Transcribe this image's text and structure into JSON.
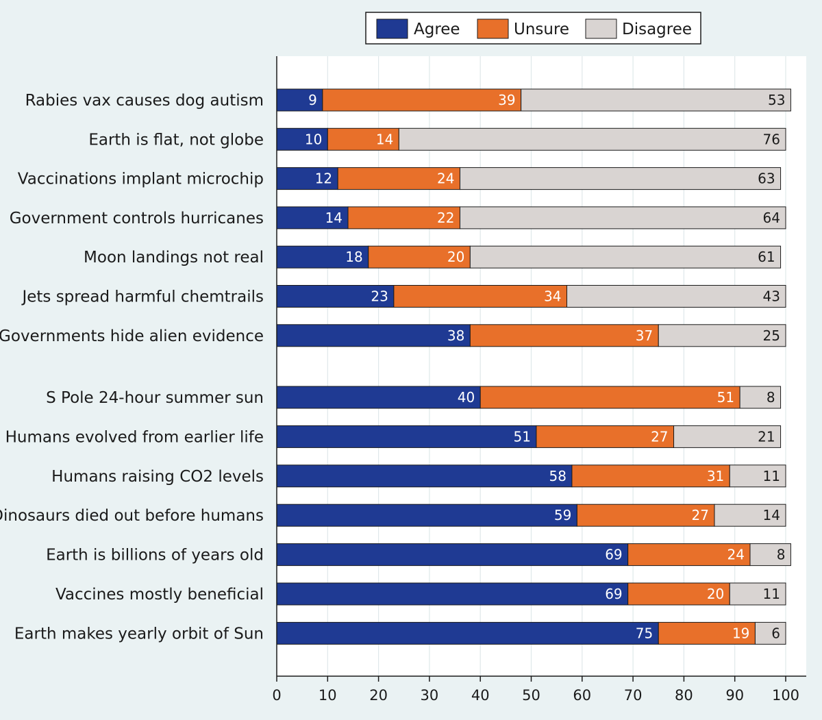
{
  "chart_data": {
    "type": "bar",
    "orientation": "horizontal",
    "stacked": true,
    "xlim": [
      0,
      100
    ],
    "x_ticks": [
      0,
      10,
      20,
      30,
      40,
      50,
      60,
      70,
      80,
      90,
      100
    ],
    "grid": true,
    "legend_position": "top",
    "categories": [
      "Rabies vax causes dog autism",
      "Earth is flat, not globe",
      "Vaccinations implant microchip",
      "Government controls hurricanes",
      "Moon landings not real",
      "Jets spread harmful chemtrails",
      "Governments hide alien evidence",
      "S Pole 24-hour summer sun",
      "Humans evolved from earlier life",
      "Humans raising CO2 levels",
      "Dinosaurs died out before humans",
      "Earth is billions of years old",
      "Vaccines mostly beneficial",
      "Earth makes yearly orbit of Sun"
    ],
    "series": [
      {
        "name": "Agree",
        "color": "#1f3a93",
        "values": [
          9,
          10,
          12,
          14,
          18,
          23,
          38,
          40,
          51,
          58,
          59,
          69,
          69,
          75
        ]
      },
      {
        "name": "Unsure",
        "color": "#e8702a",
        "values": [
          39,
          14,
          24,
          22,
          20,
          34,
          37,
          51,
          27,
          31,
          27,
          24,
          20,
          19
        ]
      },
      {
        "name": "Disagree",
        "color": "#d9d4d2",
        "values": [
          53,
          76,
          63,
          64,
          61,
          43,
          25,
          8,
          21,
          11,
          14,
          8,
          11,
          6
        ]
      }
    ]
  }
}
